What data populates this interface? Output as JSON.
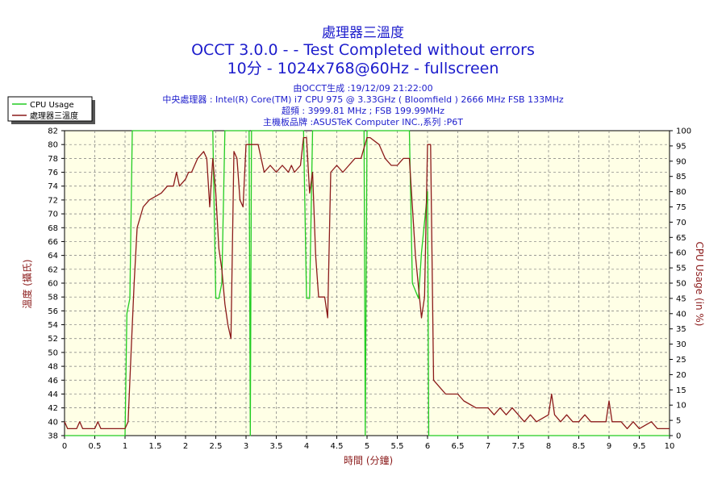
{
  "titles": {
    "main": "處理器三溫度",
    "line2": "OCCT 3.0.0 -  - Test Completed without errors",
    "line3": "10分 - 1024x768@60Hz - fullscreen"
  },
  "info": {
    "line1": "由OCCT生成 :19/12/09 21:22:00",
    "line2": "中央處理器 : Intel(R) Core(TM) i7 CPU 975 @ 3.33GHz ( Bloomfield ) 2666 MHz FSB 133MHz",
    "line3": "超頻 : 3999.81 MHz ; FSB 199.99MHz",
    "line4": "主機板品牌 :ASUSTeK Computer INC.,系列 :P6T"
  },
  "chart_data": {
    "type": "line",
    "xlabel": "時間 (分鐘)",
    "ylabel_left": "溫度 (攝氏)",
    "ylabel_right": "CPU Usage (in %)",
    "xlim": [
      0,
      10
    ],
    "ylim_left": [
      38,
      82
    ],
    "ylim_right": [
      0,
      100
    ],
    "x_ticks": [
      "0",
      "0.5",
      "1",
      "1.5",
      "2",
      "2.5",
      "3",
      "3.5",
      "4",
      "4.5",
      "5",
      "5.5",
      "6",
      "6.5",
      "7",
      "7.5",
      "8",
      "8.5",
      "9",
      "9.5",
      "10"
    ],
    "y_ticks_left": [
      "38",
      "40",
      "42",
      "44",
      "46",
      "48",
      "50",
      "52",
      "54",
      "56",
      "58",
      "60",
      "62",
      "64",
      "66",
      "68",
      "70",
      "72",
      "74",
      "76",
      "78",
      "80",
      "82"
    ],
    "y_ticks_right": [
      "0",
      "5",
      "10",
      "15",
      "20",
      "25",
      "30",
      "35",
      "40",
      "45",
      "50",
      "55",
      "60",
      "65",
      "70",
      "75",
      "80",
      "85",
      "90",
      "95",
      "100"
    ],
    "grid": true,
    "legend_position": "top-left",
    "series": [
      {
        "name": "CPU Usage",
        "axis": "right",
        "color": "#22cc22",
        "points": [
          [
            0,
            0
          ],
          [
            1.0,
            0
          ],
          [
            1.03,
            40
          ],
          [
            1.08,
            45
          ],
          [
            1.12,
            100
          ],
          [
            2.45,
            100
          ],
          [
            2.5,
            45
          ],
          [
            2.55,
            45
          ],
          [
            2.6,
            50
          ],
          [
            2.65,
            100
          ],
          [
            3.05,
            100
          ],
          [
            3.07,
            0
          ],
          [
            3.09,
            100
          ],
          [
            3.95,
            100
          ],
          [
            4.0,
            45
          ],
          [
            4.05,
            45
          ],
          [
            4.1,
            100
          ],
          [
            4.95,
            100
          ],
          [
            4.97,
            0
          ],
          [
            5.0,
            100
          ],
          [
            5.7,
            100
          ],
          [
            5.75,
            50
          ],
          [
            5.85,
            45
          ],
          [
            5.9,
            60
          ],
          [
            6.0,
            80
          ],
          [
            6.02,
            0
          ],
          [
            10,
            0
          ]
        ]
      },
      {
        "name": "處理器三溫度",
        "axis": "left",
        "color": "#8b1a1a",
        "points": [
          [
            0,
            40
          ],
          [
            0.05,
            39
          ],
          [
            0.2,
            39
          ],
          [
            0.25,
            40
          ],
          [
            0.3,
            39
          ],
          [
            0.5,
            39
          ],
          [
            0.55,
            40
          ],
          [
            0.6,
            39
          ],
          [
            1.0,
            39
          ],
          [
            1.05,
            40
          ],
          [
            1.1,
            50
          ],
          [
            1.15,
            60
          ],
          [
            1.2,
            68
          ],
          [
            1.3,
            71
          ],
          [
            1.4,
            72
          ],
          [
            1.6,
            73
          ],
          [
            1.7,
            74
          ],
          [
            1.8,
            74
          ],
          [
            1.85,
            76
          ],
          [
            1.9,
            74
          ],
          [
            2.0,
            75
          ],
          [
            2.05,
            76
          ],
          [
            2.1,
            76
          ],
          [
            2.2,
            78
          ],
          [
            2.3,
            79
          ],
          [
            2.35,
            78
          ],
          [
            2.4,
            71
          ],
          [
            2.45,
            78
          ],
          [
            2.5,
            73
          ],
          [
            2.55,
            65
          ],
          [
            2.6,
            62
          ],
          [
            2.65,
            57
          ],
          [
            2.7,
            54
          ],
          [
            2.75,
            52
          ],
          [
            2.8,
            79
          ],
          [
            2.85,
            78
          ],
          [
            2.9,
            72
          ],
          [
            2.95,
            71
          ],
          [
            3.0,
            80
          ],
          [
            3.2,
            80
          ],
          [
            3.3,
            76
          ],
          [
            3.4,
            77
          ],
          [
            3.5,
            76
          ],
          [
            3.6,
            77
          ],
          [
            3.7,
            76
          ],
          [
            3.75,
            77
          ],
          [
            3.8,
            76
          ],
          [
            3.9,
            77
          ],
          [
            3.95,
            81
          ],
          [
            4.0,
            81
          ],
          [
            4.05,
            73
          ],
          [
            4.1,
            76
          ],
          [
            4.15,
            64
          ],
          [
            4.2,
            58
          ],
          [
            4.3,
            58
          ],
          [
            4.35,
            55
          ],
          [
            4.4,
            76
          ],
          [
            4.5,
            77
          ],
          [
            4.6,
            76
          ],
          [
            4.7,
            77
          ],
          [
            4.8,
            78
          ],
          [
            4.9,
            78
          ],
          [
            5.0,
            81
          ],
          [
            5.05,
            81
          ],
          [
            5.2,
            80
          ],
          [
            5.3,
            78
          ],
          [
            5.4,
            77
          ],
          [
            5.5,
            77
          ],
          [
            5.6,
            78
          ],
          [
            5.7,
            78
          ],
          [
            5.8,
            64
          ],
          [
            5.9,
            55
          ],
          [
            5.95,
            58
          ],
          [
            6.0,
            80
          ],
          [
            6.05,
            80
          ],
          [
            6.1,
            46
          ],
          [
            6.2,
            45
          ],
          [
            6.3,
            44
          ],
          [
            6.5,
            44
          ],
          [
            6.6,
            43
          ],
          [
            6.8,
            42
          ],
          [
            7.0,
            42
          ],
          [
            7.1,
            41
          ],
          [
            7.2,
            42
          ],
          [
            7.3,
            41
          ],
          [
            7.4,
            42
          ],
          [
            7.5,
            41
          ],
          [
            7.6,
            40
          ],
          [
            7.7,
            41
          ],
          [
            7.8,
            40
          ],
          [
            8.0,
            41
          ],
          [
            8.05,
            44
          ],
          [
            8.1,
            41
          ],
          [
            8.2,
            40
          ],
          [
            8.3,
            41
          ],
          [
            8.4,
            40
          ],
          [
            8.5,
            40
          ],
          [
            8.6,
            41
          ],
          [
            8.7,
            40
          ],
          [
            8.95,
            40
          ],
          [
            9.0,
            43
          ],
          [
            9.05,
            40
          ],
          [
            9.2,
            40
          ],
          [
            9.3,
            39
          ],
          [
            9.4,
            40
          ],
          [
            9.5,
            39
          ],
          [
            9.7,
            40
          ],
          [
            9.8,
            39
          ],
          [
            10.0,
            39
          ]
        ]
      }
    ]
  }
}
